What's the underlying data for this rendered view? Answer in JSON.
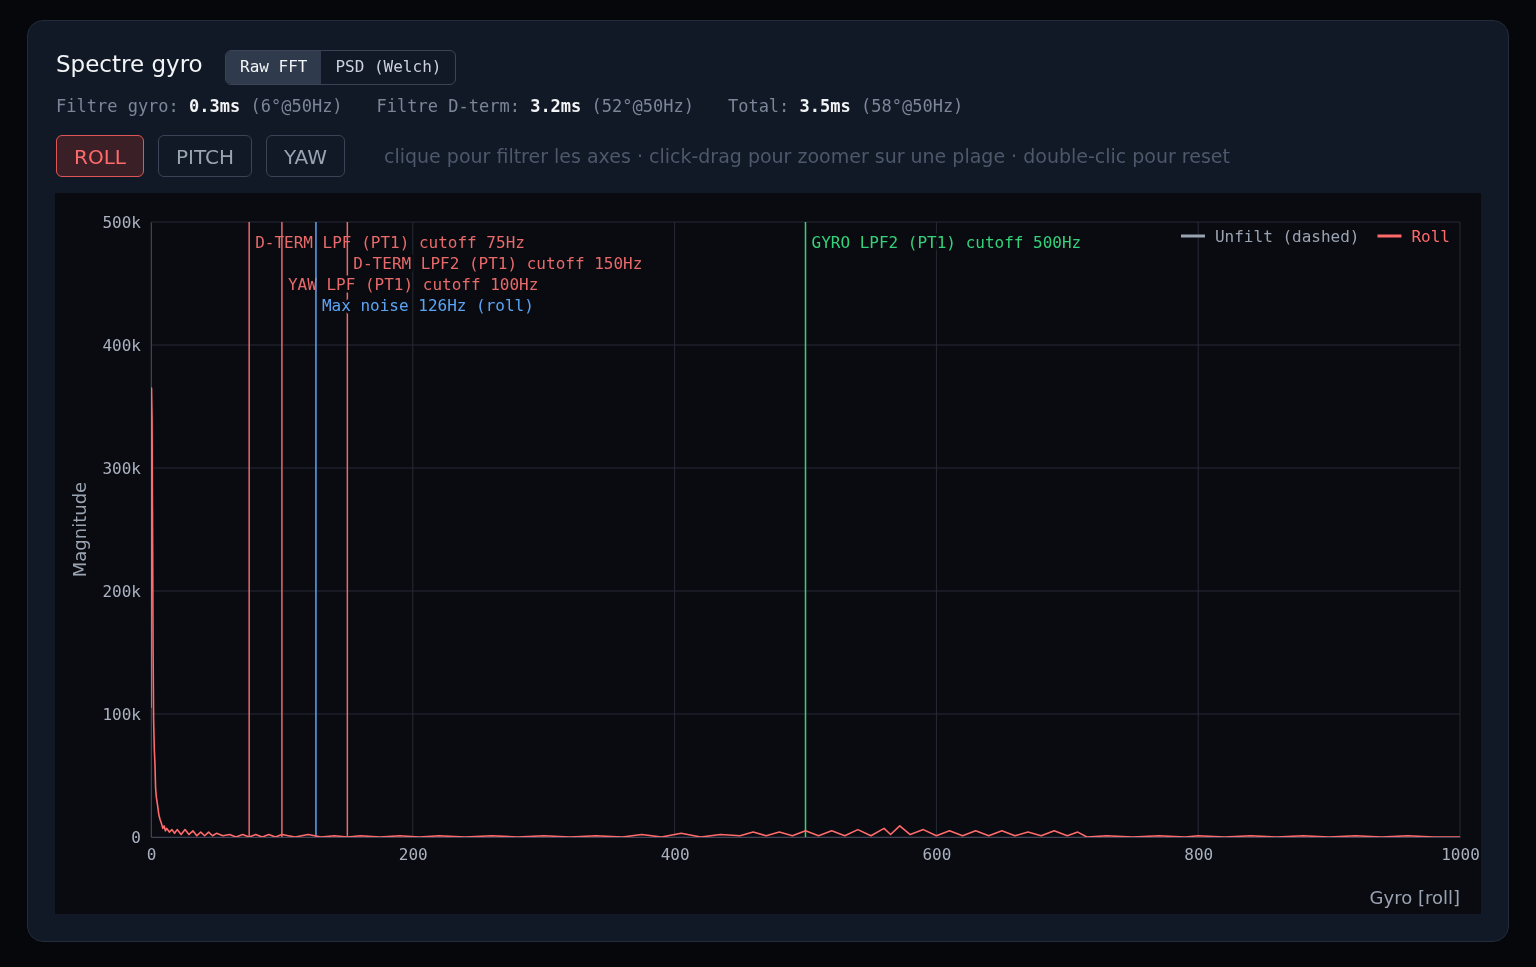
{
  "chart_data": {
    "type": "line",
    "title": "Spectre gyro",
    "xlabel": "Gyro [roll]",
    "ylabel": "Magnitude",
    "annotations": [
      "Raw FFT",
      "PSD (Welch)",
      "Filtre gyro: 0.3ms (6°@50Hz)",
      "Filtre D-term: 3.2ms (52°@50Hz)",
      "Total: 3.5ms (58°@50Hz)",
      "ROLL",
      "PITCH",
      "YAW",
      "clique pour filtrer les axes · click-drag pour zoomer sur une plage · double-clic pour reset"
    ],
    "xlim": [
      0,
      1000
    ],
    "xticks": [
      0,
      200,
      400,
      600,
      800,
      1000
    ],
    "ylim": [
      0,
      500000
    ],
    "yticks": [
      0,
      {
        "value": 100000,
        "label": "100k"
      },
      {
        "value": 200000,
        "label": "200k"
      },
      {
        "value": 300000,
        "label": "300k"
      },
      {
        "value": 400000,
        "label": "400k"
      },
      {
        "value": 500000,
        "label": "500k"
      }
    ],
    "grid": true,
    "legend": "top right",
    "marker": "none",
    "ref_lines": [
      {
        "axis": "x",
        "value": 75,
        "label": "D-TERM LPF (PT1) cutoff 75Hz",
        "color": "#e86a6a"
      },
      {
        "axis": "x",
        "value": 150,
        "label": "D-TERM LPF2 (PT1) cutoff 150Hz",
        "color": "#e86a6a"
      },
      {
        "axis": "x",
        "value": 100,
        "label": "YAW LPF (PT1) cutoff 100Hz",
        "color": "#e86a6a"
      },
      {
        "axis": "x",
        "value": 126,
        "label": "Max noise 126Hz (roll)",
        "color": "#5ba4f5"
      },
      {
        "axis": "x",
        "value": 500,
        "label": "GYRO LPF2 (PT1) cutoff 500Hz",
        "color": "#34d27a"
      }
    ],
    "series": [
      {
        "name": "Unfilt (dashed)",
        "color": "#9aa3b2"
      },
      {
        "name": "Roll",
        "color": "#ff6b6b",
        "line_style": "solid",
        "x": [
          0,
          0.4,
          0.8,
          1.2,
          1.6,
          2,
          2.5,
          3,
          3.5,
          4,
          5,
          6,
          7,
          8,
          9,
          10,
          11,
          12,
          14,
          16,
          18,
          20,
          23,
          26,
          29,
          32,
          35,
          38,
          41,
          44,
          47,
          50,
          55,
          60,
          65,
          70,
          75,
          80,
          85,
          90,
          95,
          100,
          110,
          120,
          130,
          140,
          150,
          160,
          175,
          190,
          205,
          220,
          240,
          260,
          280,
          300,
          320,
          340,
          360,
          375,
          390,
          405,
          420,
          435,
          450,
          460,
          470,
          480,
          490,
          500,
          510,
          520,
          530,
          540,
          550,
          560,
          565,
          572,
          580,
          590,
          600,
          610,
          620,
          630,
          640,
          650,
          660,
          670,
          680,
          690,
          700,
          708,
          715,
          730,
          750,
          770,
          790,
          800,
          820,
          840,
          860,
          880,
          900,
          920,
          940,
          960,
          980,
          1000
        ],
        "values": [
          105000,
          365000,
          340000,
          250000,
          150000,
          95000,
          72000,
          60000,
          40000,
          33000,
          26000,
          18000,
          14000,
          11000,
          7000,
          9000,
          5000,
          7000,
          4000,
          6000,
          3000,
          6000,
          2000,
          6000,
          2000,
          5000,
          1000,
          4000,
          1000,
          4000,
          1000,
          3000,
          1000,
          2000,
          0,
          2000,
          0,
          2000,
          0,
          2000,
          0,
          2000,
          0,
          2000,
          0,
          1000,
          0,
          1000,
          0,
          1000,
          0,
          1000,
          0,
          1000,
          0,
          1000,
          0,
          1000,
          0,
          2000,
          0,
          3000,
          0,
          2000,
          1000,
          4000,
          1000,
          4000,
          1000,
          5000,
          1000,
          5000,
          1000,
          6000,
          1000,
          7000,
          2000,
          9000,
          2000,
          6000,
          1000,
          5000,
          1000,
          5000,
          1000,
          5000,
          1000,
          4000,
          1000,
          5000,
          1000,
          4000,
          0,
          1000,
          0,
          1000,
          0,
          1000,
          0,
          1000,
          0,
          1000,
          0,
          1000,
          0,
          1000,
          0,
          0
        ]
      }
    ]
  }
}
